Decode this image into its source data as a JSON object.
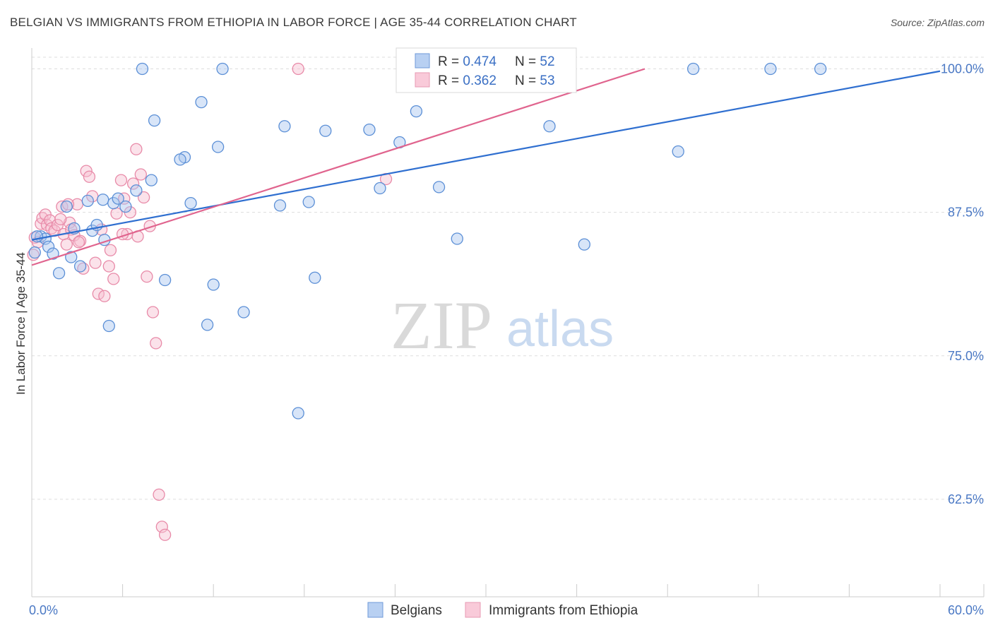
{
  "title": "BELGIAN VS IMMIGRANTS FROM ETHIOPIA IN LABOR FORCE | AGE 35-44 CORRELATION CHART",
  "source": "Source: ZipAtlas.com",
  "watermark": {
    "zip": "ZIP",
    "atlas": "atlas"
  },
  "colors": {
    "blue_fill": "#a8c6f0",
    "blue_stroke": "#5b8fd6",
    "blue_line": "#2f6fd0",
    "pink_fill": "#f7bfd0",
    "pink_stroke": "#e88aa8",
    "pink_line": "#e0648e",
    "grid": "#dddddd",
    "axis_text": "#4a78c4"
  },
  "legend": {
    "rows": [
      {
        "r_label": "R = ",
        "r_value": "0.474",
        "n_label": "N = ",
        "n_value": "52",
        "series": "blue"
      },
      {
        "r_label": "R = ",
        "r_value": "0.362",
        "n_label": "N = ",
        "n_value": "53",
        "series": "pink"
      }
    ]
  },
  "chart_data": {
    "type": "scatter",
    "title": "BELGIAN VS IMMIGRANTS FROM ETHIOPIA IN LABOR FORCE | AGE 35-44 CORRELATION CHART",
    "xlabel": "",
    "ylabel": "In Labor Force | Age 35-44",
    "xlim": [
      0,
      60
    ],
    "ylim": [
      54,
      101.2
    ],
    "x_tick_labels": [
      "0.0%",
      "60.0%"
    ],
    "y_ticks": [
      62.5,
      75.0,
      87.5,
      100.0
    ],
    "y_tick_labels": [
      "62.5%",
      "75.0%",
      "87.5%",
      "100.0%"
    ],
    "grid": true,
    "legend_position": "top-center",
    "series": [
      {
        "name": "Belgians",
        "color": "blue",
        "R": 0.474,
        "N": 52,
        "trend": {
          "x": [
            0,
            60
          ],
          "y": [
            85.1,
            99.8
          ]
        },
        "points": [
          [
            0.2,
            84.0
          ],
          [
            0.6,
            85.4
          ],
          [
            0.9,
            85.2
          ],
          [
            1.1,
            84.5
          ],
          [
            1.4,
            83.9
          ],
          [
            1.8,
            82.2
          ],
          [
            2.3,
            88.0
          ],
          [
            2.6,
            83.6
          ],
          [
            2.8,
            86.1
          ],
          [
            3.2,
            82.8
          ],
          [
            3.7,
            88.5
          ],
          [
            4.0,
            85.9
          ],
          [
            4.3,
            86.4
          ],
          [
            4.7,
            88.6
          ],
          [
            4.8,
            85.1
          ],
          [
            5.1,
            77.6
          ],
          [
            5.4,
            88.3
          ],
          [
            5.7,
            88.7
          ],
          [
            6.2,
            88.0
          ],
          [
            6.9,
            89.4
          ],
          [
            7.3,
            100.0
          ],
          [
            7.9,
            90.3
          ],
          [
            8.1,
            95.5
          ],
          [
            10.1,
            92.3
          ],
          [
            8.8,
            81.6
          ],
          [
            9.8,
            92.1
          ],
          [
            10.5,
            88.3
          ],
          [
            11.2,
            97.1
          ],
          [
            11.6,
            77.7
          ],
          [
            12.0,
            81.2
          ],
          [
            12.3,
            93.2
          ],
          [
            14.0,
            78.8
          ],
          [
            12.6,
            100.0
          ],
          [
            16.4,
            88.1
          ],
          [
            16.7,
            95.0
          ],
          [
            17.6,
            70.0
          ],
          [
            18.3,
            88.4
          ],
          [
            18.7,
            81.8
          ],
          [
            19.4,
            94.6
          ],
          [
            22.3,
            94.7
          ],
          [
            23.0,
            89.6
          ],
          [
            24.3,
            93.6
          ],
          [
            25.4,
            96.3
          ],
          [
            26.9,
            89.7
          ],
          [
            28.1,
            85.2
          ],
          [
            34.2,
            95.0
          ],
          [
            36.5,
            84.7
          ],
          [
            42.7,
            92.8
          ],
          [
            43.7,
            100.0
          ],
          [
            48.8,
            100.0
          ],
          [
            52.1,
            100.0
          ],
          [
            0.35,
            85.4
          ]
        ]
      },
      {
        "name": "Immigrants from Ethiopia",
        "color": "pink",
        "R": 0.362,
        "N": 53,
        "trend": {
          "x": [
            0,
            40.5
          ],
          "y": [
            82.9,
            100.0
          ]
        },
        "points": [
          [
            0.1,
            83.8
          ],
          [
            0.2,
            85.3
          ],
          [
            0.4,
            84.9
          ],
          [
            0.6,
            86.5
          ],
          [
            0.7,
            87.0
          ],
          [
            0.9,
            87.3
          ],
          [
            1.0,
            86.4
          ],
          [
            1.2,
            86.8
          ],
          [
            1.3,
            86.1
          ],
          [
            1.5,
            85.9
          ],
          [
            1.7,
            86.4
          ],
          [
            2.0,
            88.0
          ],
          [
            2.1,
            85.6
          ],
          [
            2.3,
            84.7
          ],
          [
            2.5,
            86.6
          ],
          [
            2.6,
            86.0
          ],
          [
            2.8,
            85.5
          ],
          [
            3.0,
            88.2
          ],
          [
            3.2,
            85.0
          ],
          [
            3.4,
            82.6
          ],
          [
            3.6,
            91.1
          ],
          [
            3.8,
            90.6
          ],
          [
            4.0,
            88.9
          ],
          [
            4.2,
            83.1
          ],
          [
            4.4,
            80.4
          ],
          [
            4.8,
            80.2
          ],
          [
            5.1,
            82.8
          ],
          [
            5.2,
            84.2
          ],
          [
            5.4,
            81.7
          ],
          [
            5.6,
            87.4
          ],
          [
            5.9,
            90.3
          ],
          [
            6.1,
            88.7
          ],
          [
            6.3,
            85.6
          ],
          [
            6.5,
            87.5
          ],
          [
            6.7,
            90.0
          ],
          [
            6.9,
            93.0
          ],
          [
            7.0,
            85.4
          ],
          [
            7.2,
            90.8
          ],
          [
            7.4,
            88.8
          ],
          [
            7.6,
            81.9
          ],
          [
            7.8,
            86.3
          ],
          [
            8.0,
            78.8
          ],
          [
            8.2,
            76.1
          ],
          [
            8.4,
            62.9
          ],
          [
            8.6,
            60.1
          ],
          [
            8.8,
            59.4
          ],
          [
            17.6,
            100.0
          ],
          [
            23.4,
            90.4
          ],
          [
            1.9,
            86.9
          ],
          [
            2.4,
            88.2
          ],
          [
            3.1,
            84.9
          ],
          [
            4.6,
            86.0
          ],
          [
            6.0,
            85.6
          ]
        ]
      }
    ]
  },
  "bottom_legend": [
    {
      "label": "Belgians",
      "series": "blue"
    },
    {
      "label": "Immigrants from Ethiopia",
      "series": "pink"
    }
  ]
}
